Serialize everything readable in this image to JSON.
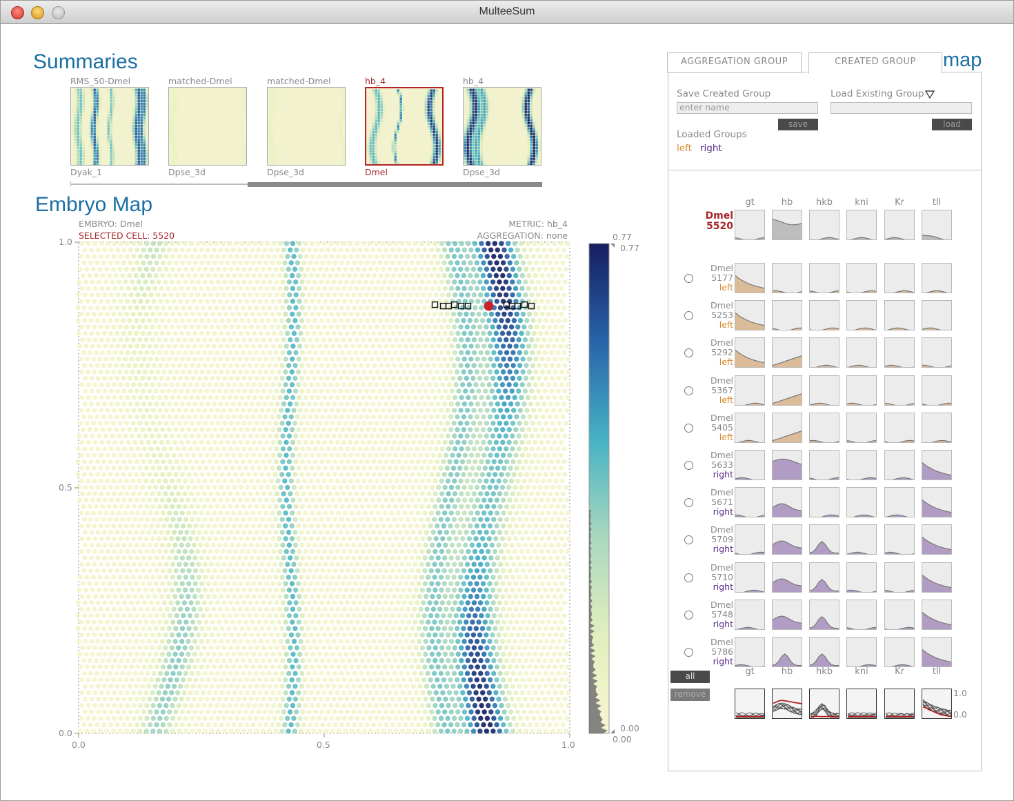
{
  "window": {
    "title": "MulteeSum"
  },
  "summaries": {
    "heading": "Summaries",
    "thumbnails": [
      {
        "top": "RMS_50-Dmel",
        "bottom": "Dyak_1",
        "selected": false
      },
      {
        "top": "matched-Dmel",
        "bottom": "Dpse_3d",
        "selected": false
      },
      {
        "top": "matched-Dmel",
        "bottom": "Dpse_3d",
        "selected": false
      },
      {
        "top": "hb_4",
        "bottom": "Dmel",
        "selected": true
      },
      {
        "top": "hb_4",
        "bottom": "Dpse_3d",
        "selected": false
      }
    ]
  },
  "embryo_map": {
    "heading": "Embryo Map",
    "embryo_label": "EMBRYO: Dmel",
    "selected_label": "SELECTED CELL: 5520",
    "metric_label": "METRIC: hb_4",
    "aggregation_label": "AGGREGATION: none",
    "x_ticks": [
      "0.0",
      "0.5",
      "1.0"
    ],
    "y_ticks": [
      "1.0",
      "0.5",
      "0.0"
    ],
    "colorbar": {
      "max_outer": "0.77",
      "max_inner": "0.77",
      "min_inner": "0.00",
      "min_outer": "0.00"
    },
    "selected_cell": {
      "x": 0.835,
      "y": 0.87
    },
    "colors": {
      "low": "#f4f3c8",
      "mid": "#3ab0c4",
      "high": "#1c2970",
      "selected": "#c8222a"
    }
  },
  "right_panel": {
    "tabs": [
      "AGGREGATION GROUP",
      "CREATED GROUP"
    ],
    "active_tab": "CREATED GROUP",
    "map_fragment": "map",
    "save_label": "Save Created Group",
    "save_placeholder": "enter name",
    "save_button": "save",
    "load_label": "Load Existing Group",
    "load_button": "load",
    "loaded_groups_label": "Loaded Groups",
    "loaded_groups": [
      "left",
      "right"
    ],
    "genes": [
      "gt",
      "hb",
      "hkb",
      "kni",
      "Kr",
      "tll"
    ],
    "reference": {
      "species": "Dmel",
      "cell": "5520"
    },
    "rows": [
      {
        "species": "Dmel",
        "cell": "5177",
        "group": "left"
      },
      {
        "species": "Dmel",
        "cell": "5253",
        "group": "left"
      },
      {
        "species": "Dmel",
        "cell": "5292",
        "group": "left"
      },
      {
        "species": "Dmel",
        "cell": "5367",
        "group": "left"
      },
      {
        "species": "Dmel",
        "cell": "5405",
        "group": "left"
      },
      {
        "species": "Dmel",
        "cell": "5633",
        "group": "right"
      },
      {
        "species": "Dmel",
        "cell": "5671",
        "group": "right"
      },
      {
        "species": "Dmel",
        "cell": "5709",
        "group": "right"
      },
      {
        "species": "Dmel",
        "cell": "5710",
        "group": "right"
      },
      {
        "species": "Dmel",
        "cell": "5748",
        "group": "right"
      },
      {
        "species": "Dmel",
        "cell": "5786",
        "group": "right"
      }
    ],
    "all_button": "all",
    "remove_button": "remove",
    "summary_axis": {
      "max": "1.0",
      "min": "0.0"
    },
    "group_colors": {
      "left": "#d4a06a",
      "right": "#5a2a88"
    }
  }
}
